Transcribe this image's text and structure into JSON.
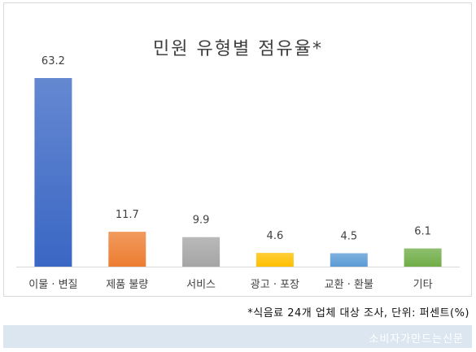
{
  "chart_data": {
    "type": "bar",
    "title": "민원 유형별 점유율*",
    "categories": [
      "이물 · 변질",
      "제품 불량",
      "서비스",
      "광고 · 포장",
      "교환 · 환불",
      "기타"
    ],
    "values": [
      63.2,
      11.7,
      9.9,
      4.6,
      4.5,
      6.1
    ],
    "value_labels": [
      "63.2",
      "11.7",
      "9.9",
      "4.6",
      "4.5",
      "6.1"
    ],
    "colors": [
      "#3a67c4",
      "#ed7d31",
      "#a5a5a5",
      "#ffc000",
      "#5b9bd5",
      "#70ad47"
    ],
    "ylim": [
      0,
      63.2
    ],
    "grid": false,
    "legend": "none"
  },
  "footnote": "*식음료 24개 업체 대상 조사, 단위: 퍼센트(%)",
  "watermark": "소비자가만드는신문"
}
